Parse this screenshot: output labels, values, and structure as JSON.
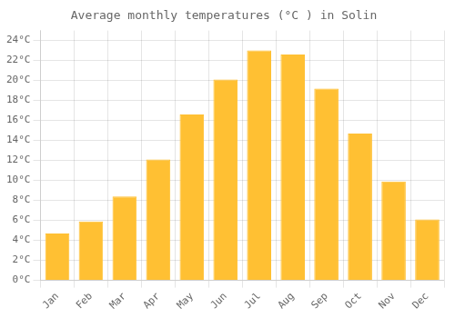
{
  "chart_data": {
    "type": "bar",
    "title": "Average monthly temperatures (°C ) in Solin",
    "categories": [
      "Jan",
      "Feb",
      "Mar",
      "Apr",
      "May",
      "Jun",
      "Jul",
      "Aug",
      "Sep",
      "Oct",
      "Nov",
      "Dec"
    ],
    "values": [
      4.7,
      5.9,
      8.4,
      12.1,
      16.6,
      20.1,
      23.0,
      22.6,
      19.2,
      14.7,
      9.9,
      6.1
    ],
    "color": "#FFC033",
    "ylim": [
      0,
      25
    ],
    "yticks": [
      {
        "value": 0,
        "label": "0°C"
      },
      {
        "value": 2,
        "label": "2°C"
      },
      {
        "value": 4,
        "label": "4°C"
      },
      {
        "value": 6,
        "label": "6°C"
      },
      {
        "value": 8,
        "label": "8°C"
      },
      {
        "value": 10,
        "label": "10°C"
      },
      {
        "value": 12,
        "label": "12°C"
      },
      {
        "value": 14,
        "label": "14°C"
      },
      {
        "value": 16,
        "label": "16°C"
      },
      {
        "value": 18,
        "label": "18°C"
      },
      {
        "value": 20,
        "label": "20°C"
      },
      {
        "value": 22,
        "label": "22°C"
      },
      {
        "value": 24,
        "label": "24°C"
      }
    ],
    "grid": true
  }
}
